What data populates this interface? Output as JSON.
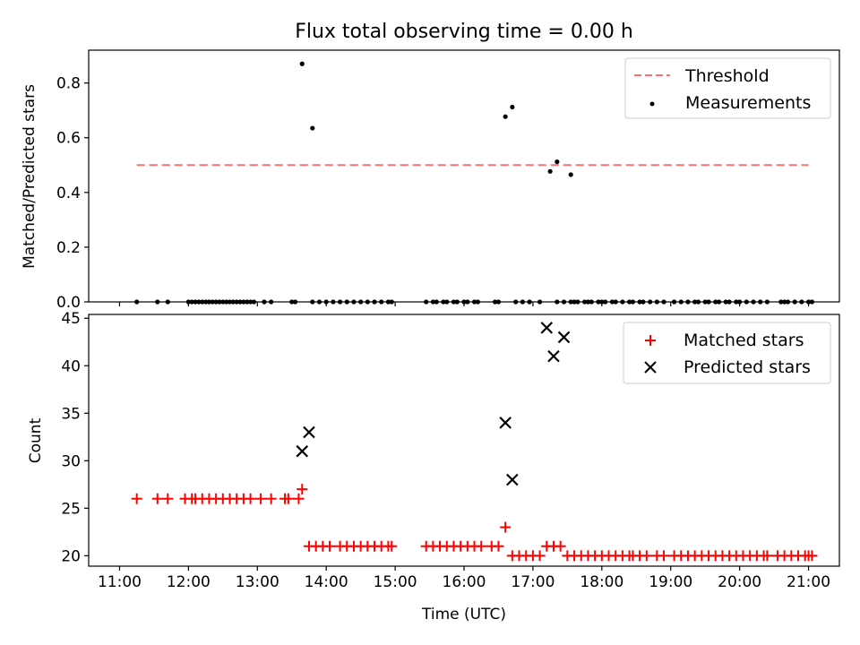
{
  "chart_data": {
    "title": "Flux total observing time = 0.00 h",
    "xlabel": "Time (UTC)",
    "x_ticks": [
      "11:00",
      "12:00",
      "13:00",
      "14:00",
      "15:00",
      "16:00",
      "17:00",
      "18:00",
      "19:00",
      "20:00",
      "21:00"
    ],
    "colors": {
      "threshold": "#ff7070",
      "measurements": "#000000",
      "matched": "#ff0000",
      "predicted": "#000000"
    },
    "panels": [
      {
        "type": "scatter",
        "ylabel": "Matched/Predicted stars",
        "ylim": [
          0,
          0.92
        ],
        "y_ticks": [
          "0.0",
          "0.2",
          "0.4",
          "0.6",
          "0.8"
        ],
        "legend_placement": "top-right",
        "series": [
          {
            "name": "Threshold",
            "style": "dashed-line",
            "x": [
              "11:15",
              "21:00"
            ],
            "y": [
              0.5,
              0.5
            ]
          },
          {
            "name": "Measurements",
            "style": "dot",
            "x": [
              "11:15",
              "11:33",
              "11:42",
              "12:00",
              "12:03",
              "12:06",
              "12:09",
              "12:12",
              "12:15",
              "12:18",
              "12:21",
              "12:24",
              "12:27",
              "12:30",
              "12:33",
              "12:36",
              "12:39",
              "12:42",
              "12:45",
              "12:48",
              "12:51",
              "12:54",
              "12:57",
              "13:06",
              "13:12",
              "13:30",
              "13:33",
              "13:48",
              "13:54",
              "14:00",
              "14:06",
              "14:12",
              "14:18",
              "14:24",
              "14:30",
              "14:36",
              "14:42",
              "14:48",
              "14:54",
              "14:57",
              "15:27",
              "15:33",
              "15:36",
              "15:42",
              "15:45",
              "15:51",
              "15:54",
              "16:00",
              "16:03",
              "16:09",
              "16:12",
              "16:27",
              "16:30",
              "16:45",
              "16:51",
              "16:57",
              "17:06",
              "17:21",
              "17:27",
              "17:33",
              "17:36",
              "17:39",
              "17:45",
              "17:48",
              "17:51",
              "17:57",
              "18:00",
              "18:03",
              "18:09",
              "18:12",
              "18:18",
              "18:24",
              "18:27",
              "18:33",
              "18:36",
              "18:42",
              "18:48",
              "18:54",
              "19:03",
              "19:09",
              "19:15",
              "19:21",
              "19:24",
              "19:30",
              "19:33",
              "19:39",
              "19:42",
              "19:48",
              "19:51",
              "19:57",
              "20:00",
              "20:06",
              "20:12",
              "20:18",
              "20:24",
              "20:36",
              "20:39",
              "20:42",
              "20:48",
              "20:54",
              "21:00",
              "21:03",
              "13:39",
              "13:48",
              "16:36",
              "16:42",
              "17:15",
              "17:21",
              "17:33"
            ],
            "y": [
              0,
              0,
              0,
              0,
              0,
              0,
              0,
              0,
              0,
              0,
              0,
              0,
              0,
              0,
              0,
              0,
              0,
              0,
              0,
              0,
              0,
              0,
              0,
              0,
              0,
              0,
              0,
              0,
              0,
              0,
              0,
              0,
              0,
              0,
              0,
              0,
              0,
              0,
              0,
              0,
              0,
              0,
              0,
              0,
              0,
              0,
              0,
              0,
              0,
              0,
              0,
              0,
              0,
              0,
              0,
              0,
              0,
              0,
              0,
              0,
              0,
              0,
              0,
              0,
              0,
              0,
              0,
              0,
              0,
              0,
              0,
              0,
              0,
              0,
              0,
              0,
              0,
              0,
              0,
              0,
              0,
              0,
              0,
              0,
              0,
              0,
              0,
              0,
              0,
              0,
              0,
              0,
              0,
              0,
              0,
              0,
              0,
              0,
              0,
              0,
              0,
              0,
              0.87,
              0.635,
              0.677,
              0.712,
              0.477,
              0.512,
              0.465
            ]
          }
        ]
      },
      {
        "type": "scatter",
        "ylabel": "Count",
        "ylim": [
          18.9,
          45.4
        ],
        "y_ticks": [
          "20",
          "25",
          "30",
          "35",
          "40",
          "45"
        ],
        "legend_placement": "top-right",
        "series": [
          {
            "name": "Matched stars",
            "style": "plus",
            "x": [
              "11:15",
              "11:33",
              "11:42",
              "11:57",
              "12:03",
              "12:06",
              "12:12",
              "12:18",
              "12:24",
              "12:30",
              "12:36",
              "12:42",
              "12:48",
              "12:54",
              "13:03",
              "13:12",
              "13:24",
              "13:27",
              "13:36",
              "13:39",
              "13:45",
              "13:51",
              "13:57",
              "14:03",
              "14:12",
              "14:18",
              "14:24",
              "14:30",
              "14:36",
              "14:42",
              "14:48",
              "14:54",
              "14:57",
              "15:27",
              "15:33",
              "15:39",
              "15:45",
              "15:51",
              "15:57",
              "16:03",
              "16:09",
              "16:15",
              "16:24",
              "16:30",
              "16:36",
              "16:42",
              "16:48",
              "16:54",
              "17:00",
              "17:06",
              "17:12",
              "17:18",
              "17:24",
              "17:30",
              "17:36",
              "17:42",
              "17:48",
              "17:54",
              "18:00",
              "18:06",
              "18:12",
              "18:18",
              "18:24",
              "18:27",
              "18:33",
              "18:39",
              "18:48",
              "18:54",
              "19:03",
              "19:09",
              "19:15",
              "19:21",
              "19:27",
              "19:33",
              "19:39",
              "19:45",
              "19:51",
              "19:57",
              "20:03",
              "20:09",
              "20:15",
              "20:21",
              "20:24",
              "20:33",
              "20:39",
              "20:45",
              "20:51",
              "20:57",
              "21:00",
              "21:03"
            ],
            "y": [
              26,
              26,
              26,
              26,
              26,
              26,
              26,
              26,
              26,
              26,
              26,
              26,
              26,
              26,
              26,
              26,
              26,
              26,
              26,
              27,
              21,
              21,
              21,
              21,
              21,
              21,
              21,
              21,
              21,
              21,
              21,
              21,
              21,
              21,
              21,
              21,
              21,
              21,
              21,
              21,
              21,
              21,
              21,
              21,
              23,
              20,
              20,
              20,
              20,
              20,
              21,
              21,
              21,
              20,
              20,
              20,
              20,
              20,
              20,
              20,
              20,
              20,
              20,
              20,
              20,
              20,
              20,
              20,
              20,
              20,
              20,
              20,
              20,
              20,
              20,
              20,
              20,
              20,
              20,
              20,
              20,
              20,
              20,
              20,
              20,
              20,
              20,
              20,
              20,
              20
            ]
          },
          {
            "name": "Predicted stars",
            "style": "x",
            "x": [
              "13:39",
              "13:45",
              "16:36",
              "16:42",
              "17:12",
              "17:18",
              "17:27"
            ],
            "y": [
              31,
              33,
              34,
              28,
              44,
              41,
              43
            ]
          }
        ]
      }
    ]
  }
}
